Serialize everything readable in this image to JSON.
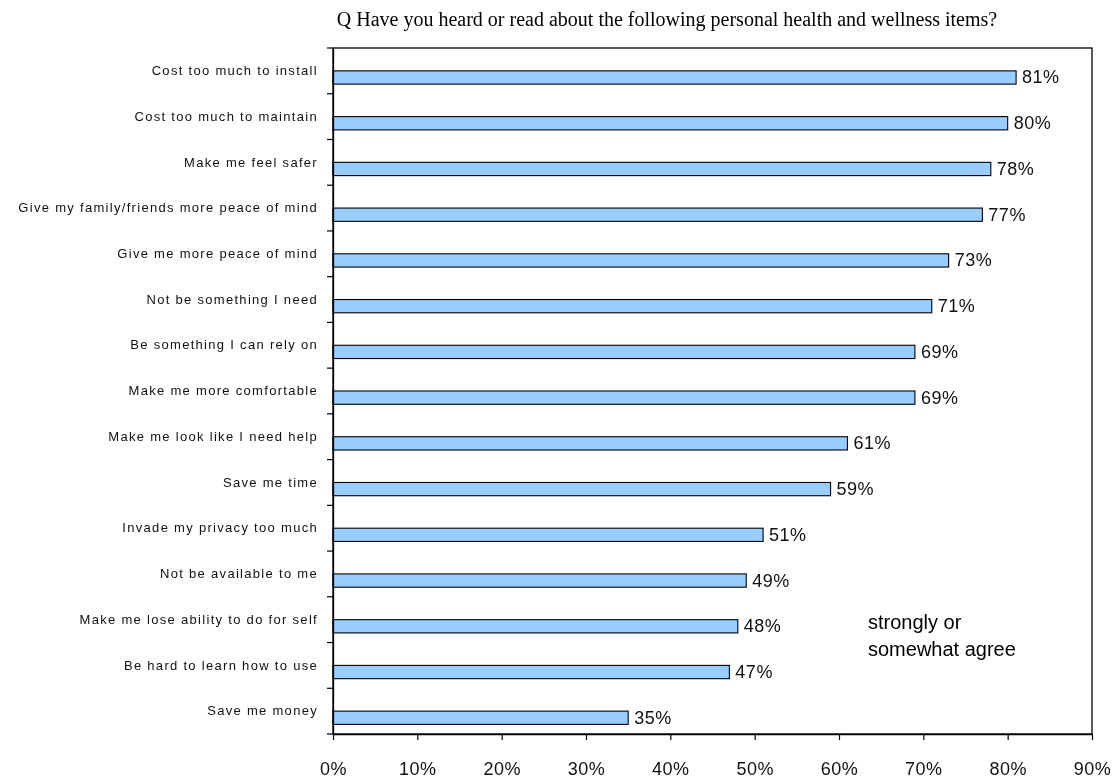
{
  "chart_data": {
    "type": "bar",
    "orientation": "horizontal",
    "title": "Q Have you heard or read about the following personal health and wellness items?",
    "categories": [
      "Cost too much to install",
      "Cost too much to maintain",
      "Make me feel safer",
      "Give my family/friends more peace of mind",
      "Give me more peace of mind",
      "Not be something I need",
      "Be something I can rely on",
      "Make me more comfortable",
      "Make me look like I need help",
      "Save me time",
      "Invade my privacy too much",
      "Not be available to me",
      "Make me lose ability to do for self",
      "Be hard to learn how to use",
      "Save me money"
    ],
    "values": [
      81,
      80,
      78,
      77,
      73,
      71,
      69,
      69,
      61,
      59,
      51,
      49,
      48,
      47,
      35
    ],
    "value_labels": [
      "81%",
      "80%",
      "78%",
      "77%",
      "73%",
      "71%",
      "69%",
      "69%",
      "61%",
      "59%",
      "51%",
      "49%",
      "48%",
      "47%",
      "35%"
    ],
    "color": "#99ccff",
    "xlim": [
      0,
      90
    ],
    "xticks": [
      {
        "value": 0,
        "label": "0%"
      },
      {
        "value": 10,
        "label": "10%"
      },
      {
        "value": 20,
        "label": "20%"
      },
      {
        "value": 30,
        "label": "30%"
      },
      {
        "value": 40,
        "label": "40%"
      },
      {
        "value": 50,
        "label": "50%"
      },
      {
        "value": 60,
        "label": "60%"
      },
      {
        "value": 70,
        "label": "70%"
      },
      {
        "value": 80,
        "label": "80%"
      },
      {
        "value": 90,
        "label": "90%"
      }
    ],
    "annotations": [
      "strongly or\nsomewhat agree"
    ]
  }
}
